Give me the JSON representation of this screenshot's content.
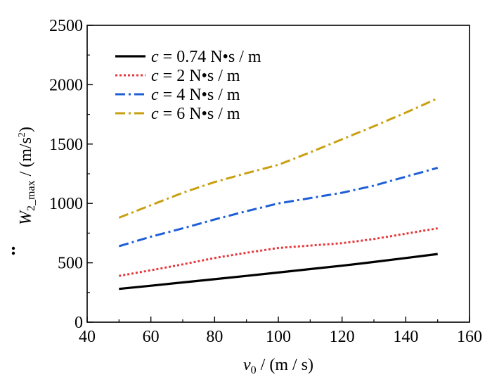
{
  "chart_data": {
    "type": "line",
    "xlabel_var": "v",
    "xlabel_sub": "0",
    "xlabel_unit": " / (m / s)",
    "ylabel_var": "W",
    "ylabel_sub": "2_max",
    "ylabel_unit": " / (m/s",
    "ylabel_sup": "2",
    "ylabel_close": ")",
    "xlim": [
      40,
      160
    ],
    "ylim": [
      0,
      2500
    ],
    "xticks": [
      40,
      60,
      80,
      100,
      120,
      140,
      160
    ],
    "yticks": [
      0,
      500,
      1000,
      1500,
      2000,
      2500
    ],
    "xtick_labels": [
      "40",
      "60",
      "80",
      "100",
      "120",
      "140",
      "160"
    ],
    "ytick_labels": [
      "0",
      "500",
      "1000",
      "1500",
      "2000",
      "2500"
    ],
    "grid": false,
    "legend_position": "top-left",
    "series": [
      {
        "name_var": "c",
        "name_rest": " = 0.74 N•s / m",
        "color": "#000000",
        "dash": "solid",
        "x": [
          50,
          60,
          70,
          80,
          90,
          100,
          110,
          120,
          130,
          140,
          150
        ],
        "values": [
          280,
          307,
          335,
          362,
          390,
          418,
          447,
          476,
          507,
          540,
          574
        ]
      },
      {
        "name_var": "c",
        "name_rest": " = 2 N•s / m",
        "color": "#e8363a",
        "dash": "dot",
        "x": [
          50,
          60,
          70,
          80,
          90,
          100,
          110,
          120,
          130,
          140,
          150
        ],
        "values": [
          390,
          437,
          487,
          540,
          585,
          625,
          645,
          665,
          700,
          745,
          790
        ]
      },
      {
        "name_var": "c",
        "name_rest": " = 4 N•s / m",
        "color": "#1f5fd6",
        "dash": "dashdot",
        "x": [
          50,
          60,
          70,
          80,
          90,
          100,
          110,
          120,
          130,
          140,
          150
        ],
        "values": [
          640,
          720,
          790,
          865,
          935,
          1000,
          1045,
          1090,
          1150,
          1225,
          1300
        ]
      },
      {
        "name_var": "c",
        "name_rest": " = 6 N•s / m",
        "color": "#c9a012",
        "dash": "dashdot",
        "x": [
          50,
          60,
          70,
          80,
          90,
          100,
          110,
          120,
          130,
          140,
          150
        ],
        "values": [
          880,
          985,
          1090,
          1180,
          1255,
          1325,
          1430,
          1540,
          1650,
          1765,
          1885
        ]
      }
    ]
  }
}
